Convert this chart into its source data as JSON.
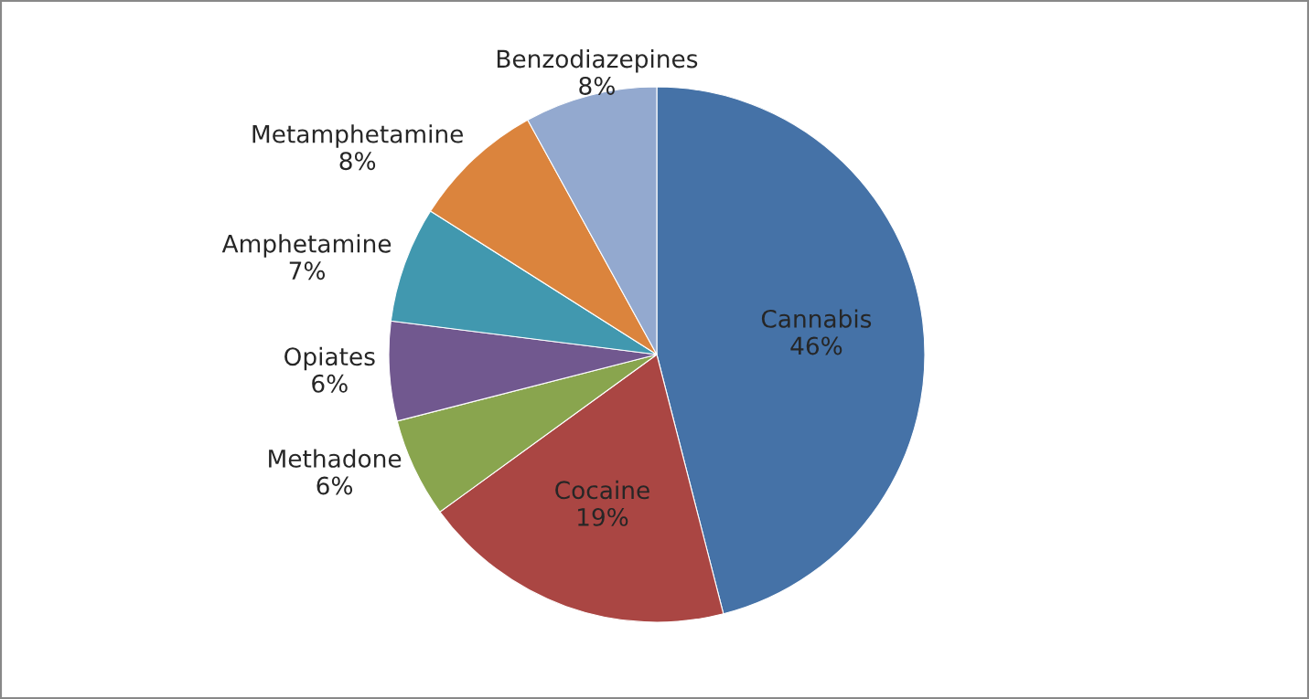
{
  "chart_data": {
    "type": "pie",
    "categories": [
      "Cannabis",
      "Cocaine",
      "Methadone",
      "Opiates",
      "Amphetamine",
      "Metamphetamine",
      "Benzodiazepines"
    ],
    "values": [
      46,
      19,
      6,
      6,
      7,
      8,
      8
    ],
    "colors": [
      "#4572a7",
      "#aa4643",
      "#89a54e",
      "#71588f",
      "#4198af",
      "#db843d",
      "#93a9cf"
    ],
    "value_labels": [
      "46%",
      "19%",
      "6%",
      "6%",
      "7%",
      "8%",
      "8%"
    ],
    "legend": false
  }
}
